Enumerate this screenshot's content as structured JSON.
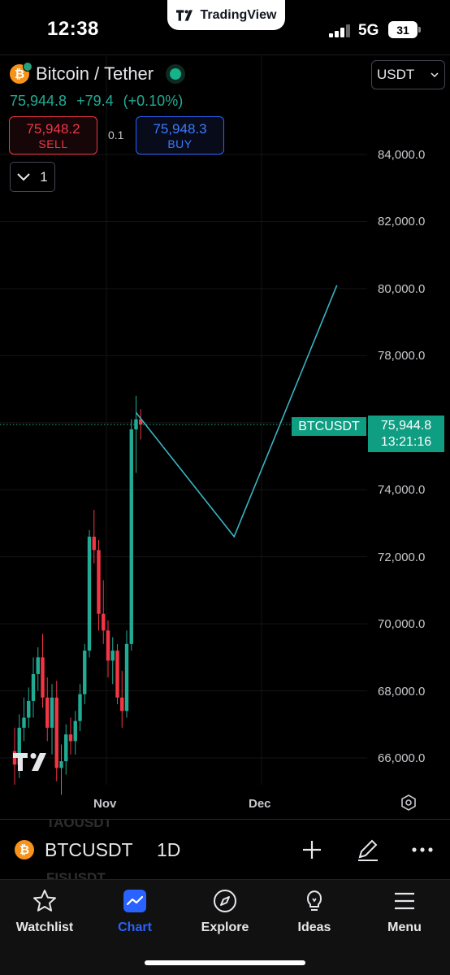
{
  "status_bar": {
    "time": "12:38",
    "app_pill": "TradingView",
    "network": "5G",
    "battery": "31"
  },
  "header": {
    "symbol_title": "Bitcoin / Tether",
    "last_price": "75,944.8",
    "change": "+79.4",
    "change_percent": "(+0.10%)",
    "sell_price": "75,948.2",
    "sell_label": "SELL",
    "spread": "0.1",
    "buy_price": "75,948.3",
    "buy_label": "BUY",
    "indicator_count": "1",
    "currency": "USDT"
  },
  "price_axis": {
    "labels": [
      "84,000.0",
      "82,000.0",
      "80,000.0",
      "78,000.0",
      "74,000.0",
      "72,000.0",
      "70,000.0",
      "68,000.0",
      "66,000.0"
    ],
    "ticker_tag": "BTCUSDT",
    "current_price": "75,944.8",
    "countdown": "13:21:16"
  },
  "time_axis": {
    "labels": [
      "Nov",
      "Dec"
    ]
  },
  "chart_data": {
    "type": "candlestick",
    "ylim": [
      65000,
      86000
    ],
    "up_color": "#22ab94",
    "down_color": "#f23645",
    "drawing_color": "#3bb3c3",
    "candles": [
      {
        "o": 66200,
        "h": 66900,
        "l": 65200,
        "c": 65800
      },
      {
        "o": 65800,
        "h": 67300,
        "l": 65400,
        "c": 66900
      },
      {
        "o": 66900,
        "h": 67800,
        "l": 66500,
        "c": 67200
      },
      {
        "o": 67200,
        "h": 68100,
        "l": 66900,
        "c": 67700
      },
      {
        "o": 67700,
        "h": 69000,
        "l": 67200,
        "c": 68500
      },
      {
        "o": 68500,
        "h": 69300,
        "l": 68000,
        "c": 69000
      },
      {
        "o": 69000,
        "h": 69700,
        "l": 67500,
        "c": 67800
      },
      {
        "o": 67800,
        "h": 68400,
        "l": 66500,
        "c": 66900
      },
      {
        "o": 66900,
        "h": 68200,
        "l": 66100,
        "c": 67800
      },
      {
        "o": 67800,
        "h": 68300,
        "l": 65300,
        "c": 65700
      },
      {
        "o": 65700,
        "h": 66400,
        "l": 64900,
        "c": 65900
      },
      {
        "o": 65900,
        "h": 67000,
        "l": 65500,
        "c": 66700
      },
      {
        "o": 66700,
        "h": 67200,
        "l": 66100,
        "c": 66500
      },
      {
        "o": 66500,
        "h": 67400,
        "l": 66100,
        "c": 67100
      },
      {
        "o": 67100,
        "h": 68200,
        "l": 66800,
        "c": 67900
      },
      {
        "o": 67900,
        "h": 69400,
        "l": 67600,
        "c": 69200
      },
      {
        "o": 69200,
        "h": 72800,
        "l": 69000,
        "c": 72600
      },
      {
        "o": 72600,
        "h": 73400,
        "l": 71800,
        "c": 72200
      },
      {
        "o": 72200,
        "h": 72500,
        "l": 69800,
        "c": 70300
      },
      {
        "o": 70300,
        "h": 71300,
        "l": 69400,
        "c": 69800
      },
      {
        "o": 69800,
        "h": 70100,
        "l": 68400,
        "c": 68900
      },
      {
        "o": 68900,
        "h": 69600,
        "l": 68200,
        "c": 69200
      },
      {
        "o": 69200,
        "h": 69400,
        "l": 67600,
        "c": 67800
      },
      {
        "o": 67800,
        "h": 68600,
        "l": 66900,
        "c": 67400
      },
      {
        "o": 67400,
        "h": 69800,
        "l": 67200,
        "c": 69400
      },
      {
        "o": 69400,
        "h": 76100,
        "l": 69200,
        "c": 75800
      },
      {
        "o": 75800,
        "h": 76800,
        "l": 74500,
        "c": 76100
      },
      {
        "o": 76100,
        "h": 76400,
        "l": 75500,
        "c": 75945
      }
    ],
    "drawing_path": [
      {
        "bar": 26,
        "price": 76300
      },
      {
        "bar": 47,
        "price": 72600
      },
      {
        "bar": 69,
        "price": 80100
      }
    ],
    "current_price": 75944.8
  },
  "symbol_bar": {
    "ghost_top": "TAOUSDT",
    "ghost_bottom": "FISUSDT",
    "symbol": "BTCUSDT",
    "interval": "1D"
  },
  "bottom_nav": {
    "items": [
      {
        "label": "Watchlist",
        "icon": "star-icon"
      },
      {
        "label": "Chart",
        "icon": "chart-icon"
      },
      {
        "label": "Explore",
        "icon": "compass-icon"
      },
      {
        "label": "Ideas",
        "icon": "lightbulb-icon"
      },
      {
        "label": "Menu",
        "icon": "hamburger-icon"
      }
    ]
  }
}
